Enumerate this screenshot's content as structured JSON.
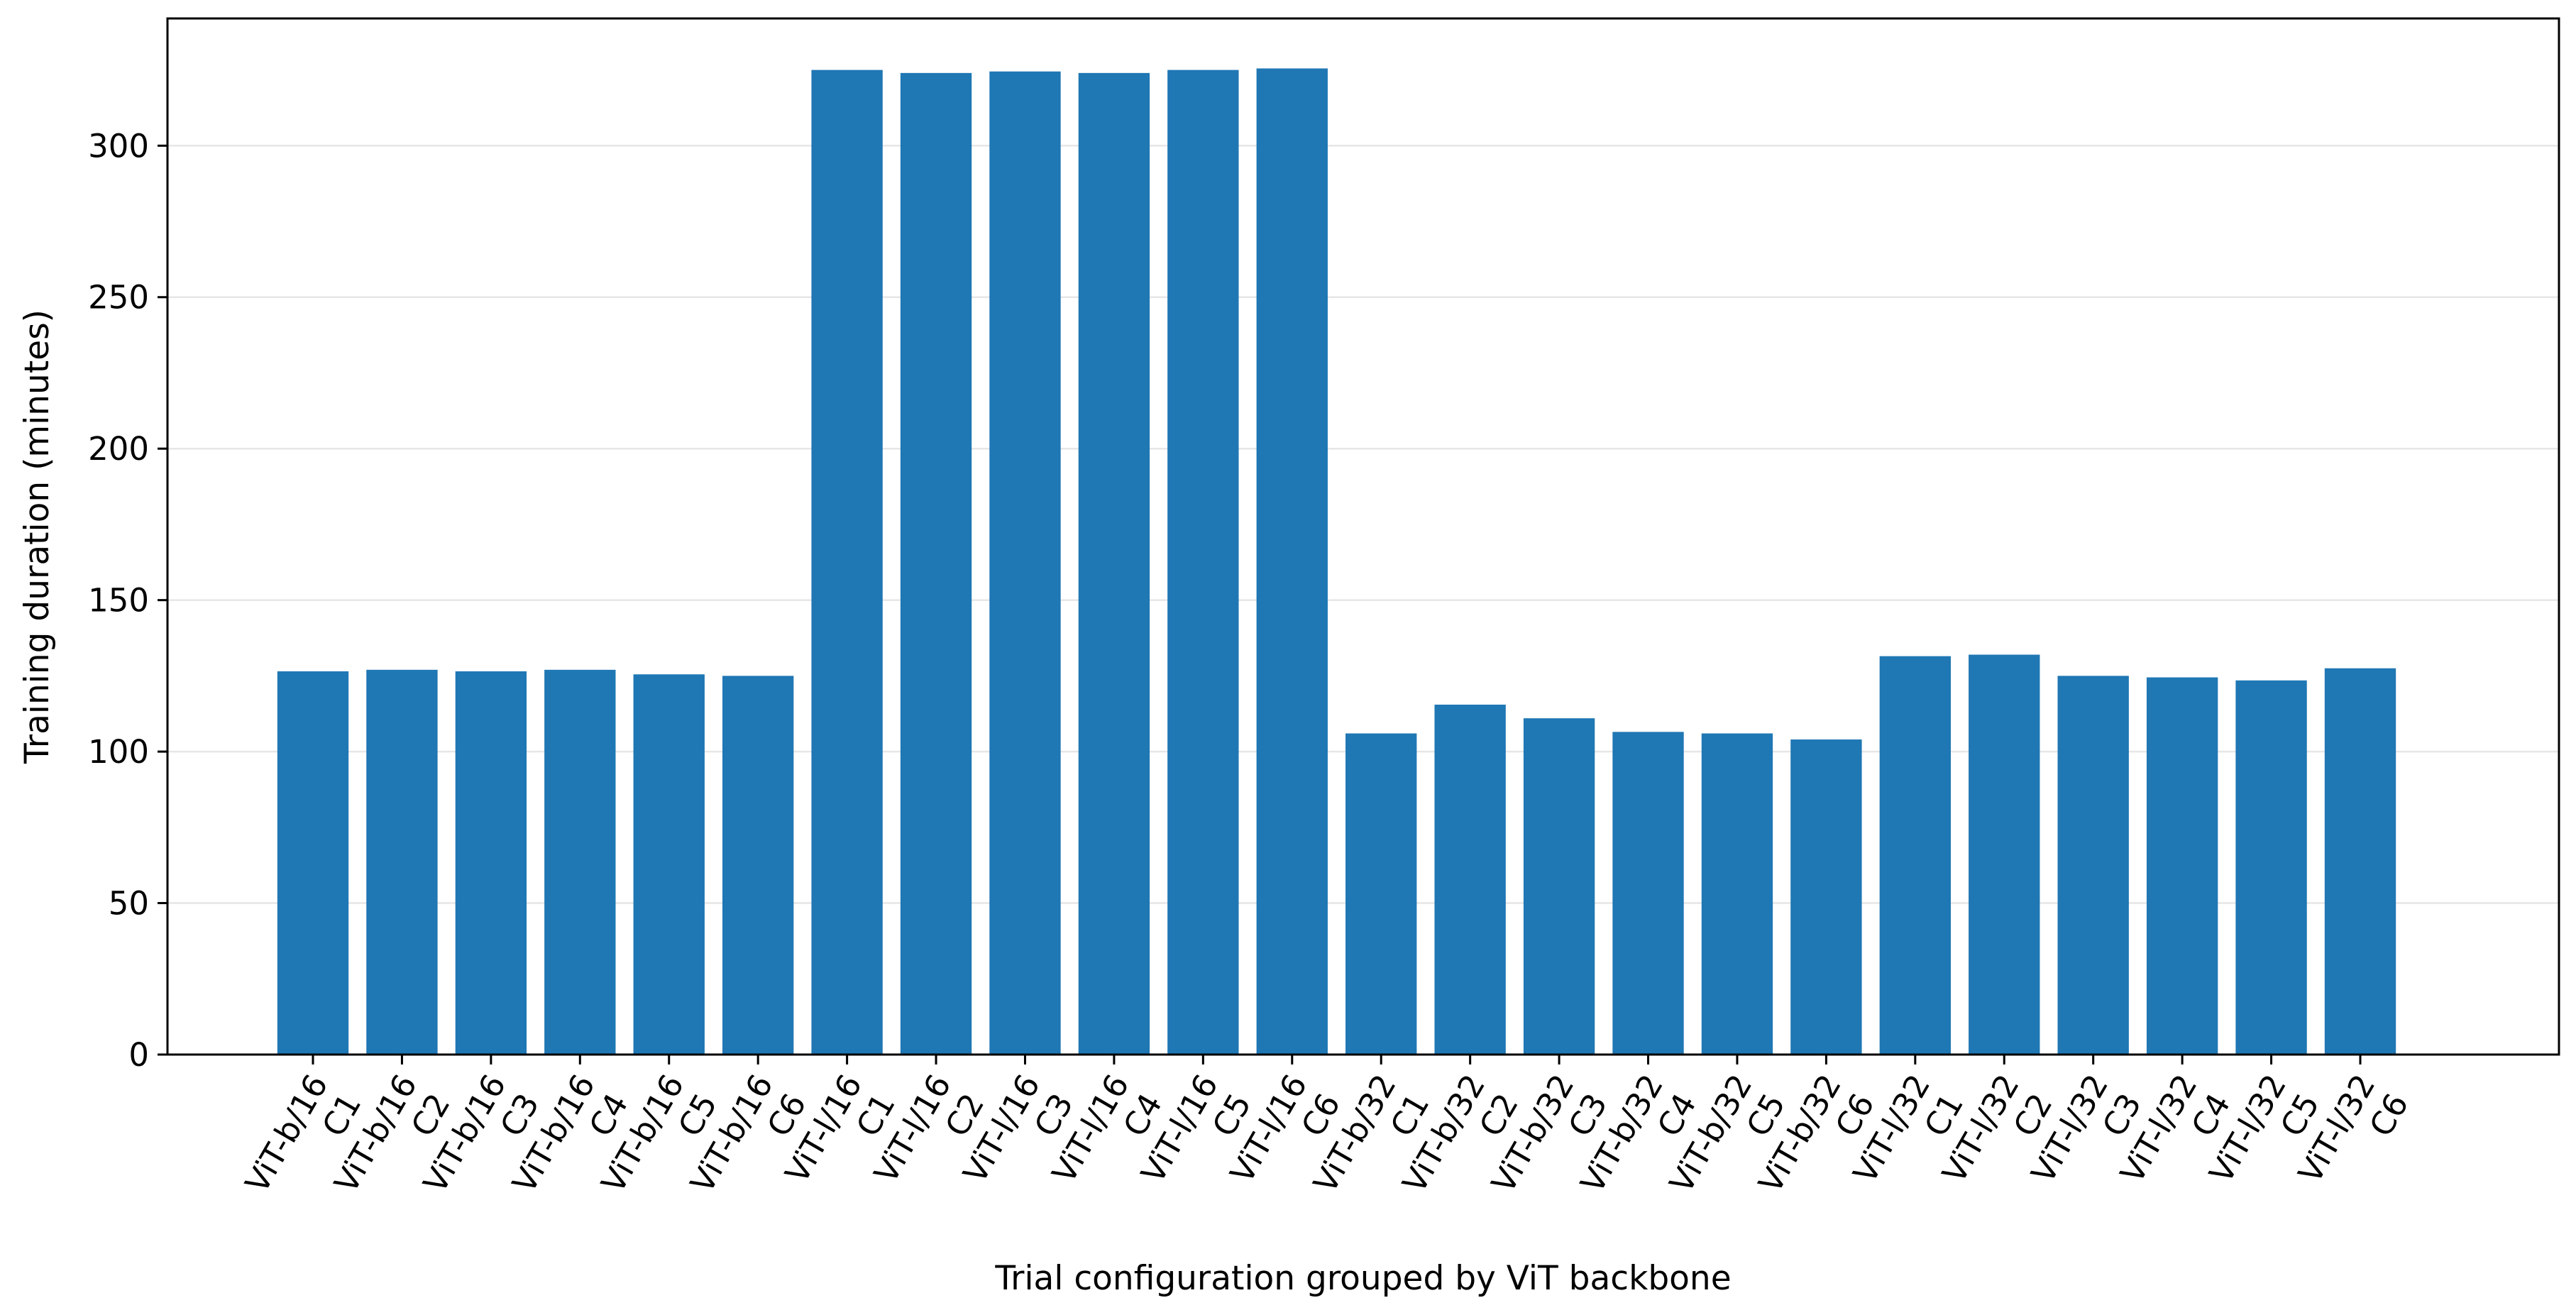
{
  "chart_data": {
    "type": "bar",
    "categories": [
      "ViT-b/16\nC1",
      "ViT-b/16\nC2",
      "ViT-b/16\nC3",
      "ViT-b/16\nC4",
      "ViT-b/16\nC5",
      "ViT-b/16\nC6",
      "ViT-l/16\nC1",
      "ViT-l/16\nC2",
      "ViT-l/16\nC3",
      "ViT-l/16\nC4",
      "ViT-l/16\nC5",
      "ViT-l/16\nC6",
      "ViT-b/32\nC1",
      "ViT-b/32\nC2",
      "ViT-b/32\nC3",
      "ViT-b/32\nC4",
      "ViT-b/32\nC5",
      "ViT-b/32\nC6",
      "ViT-l/32\nC1",
      "ViT-l/32\nC2",
      "ViT-l/32\nC3",
      "ViT-l/32\nC4",
      "ViT-l/32\nC5",
      "ViT-l/32\nC6"
    ],
    "values": [
      126.5,
      127.0,
      126.5,
      127.0,
      125.5,
      125.0,
      325.0,
      324.0,
      324.5,
      324.0,
      325.0,
      325.5,
      106.0,
      115.5,
      111.0,
      106.5,
      106.0,
      104.0,
      131.5,
      132.0,
      125.0,
      124.5,
      123.5,
      127.5
    ],
    "title": "",
    "xlabel": "Trial configuration grouped by ViT backbone",
    "ylabel": "Training duration (minutes)",
    "ylim": [
      0,
      342
    ],
    "yticks": [
      0,
      50,
      100,
      150,
      200,
      250,
      300
    ],
    "grid": "y",
    "bar_color": "#1f77b4",
    "grid_color": "#e6e6e6"
  }
}
